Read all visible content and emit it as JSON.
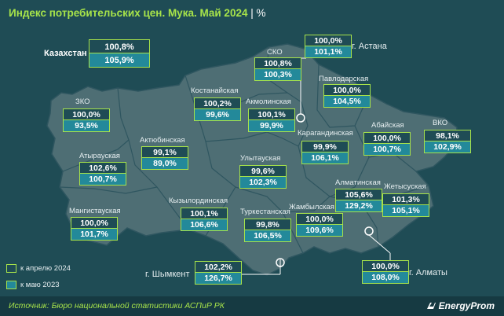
{
  "title": "Индекс потребительских цен. Мука. Май 2024",
  "unit": "%",
  "kazakhstan": {
    "label": "Казахстан",
    "apr": "100,8%",
    "may": "105,9%"
  },
  "regions": [
    {
      "id": "zko",
      "name": "ЗКО",
      "apr": "100,0%",
      "may": "93,5%"
    },
    {
      "id": "atyrau",
      "name": "Атырауская",
      "apr": "102,6%",
      "may": "100,7%"
    },
    {
      "id": "mangistau",
      "name": "Мангистауская",
      "apr": "100,0%",
      "may": "101,7%"
    },
    {
      "id": "aktobe",
      "name": "Актюбинская",
      "apr": "99,1%",
      "may": "89,0%"
    },
    {
      "id": "kyzylorda",
      "name": "Кызылординская",
      "apr": "100,1%",
      "may": "106,6%"
    },
    {
      "id": "kostanay",
      "name": "Костанайская",
      "apr": "100,2%",
      "may": "99,6%"
    },
    {
      "id": "sko",
      "name": "СКО",
      "apr": "100,8%",
      "may": "100,3%"
    },
    {
      "id": "akmola",
      "name": "Акмолинская",
      "apr": "100,1%",
      "may": "99,9%"
    },
    {
      "id": "pavlodar",
      "name": "Павлодарская",
      "apr": "100,0%",
      "may": "104,5%"
    },
    {
      "id": "ulytau",
      "name": "Улытауская",
      "apr": "99,6%",
      "may": "102,3%"
    },
    {
      "id": "karaganda",
      "name": "Карагандинская",
      "apr": "99,9%",
      "may": "106,1%"
    },
    {
      "id": "abai",
      "name": "Абайская",
      "apr": "100,0%",
      "may": "100,7%"
    },
    {
      "id": "vko",
      "name": "ВКО",
      "apr": "98,1%",
      "may": "102,9%"
    },
    {
      "id": "turkestan",
      "name": "Туркестанская",
      "apr": "99,8%",
      "may": "106,5%"
    },
    {
      "id": "zhambyl",
      "name": "Жамбылская",
      "apr": "100,0%",
      "may": "109,6%"
    },
    {
      "id": "almaty_reg",
      "name": "Алматинская",
      "apr": "105,6%",
      "may": "129,2%"
    },
    {
      "id": "zhetysu",
      "name": "Жетысуская",
      "apr": "101,3%",
      "may": "105,1%"
    }
  ],
  "cities": [
    {
      "id": "astana",
      "name": "г. Астана",
      "apr": "100,0%",
      "may": "101,1%"
    },
    {
      "id": "shymkent",
      "name": "г. Шымкент",
      "apr": "102,2%",
      "may": "126,7%"
    },
    {
      "id": "almaty",
      "name": "г. Алматы",
      "apr": "100,0%",
      "may": "108,0%"
    }
  ],
  "legend": {
    "apr": "к апрелю 2024",
    "may": "к маю 2023"
  },
  "source": "Источник: Бюро национальной статистики АСПиР РК",
  "brand": "EnergyProm",
  "colors": {
    "accent": "#a7e34a",
    "box_top": "#1f4c55",
    "box_bottom": "#23899a",
    "map_fill": "#4e6e74",
    "background": "#1f4c55"
  }
}
